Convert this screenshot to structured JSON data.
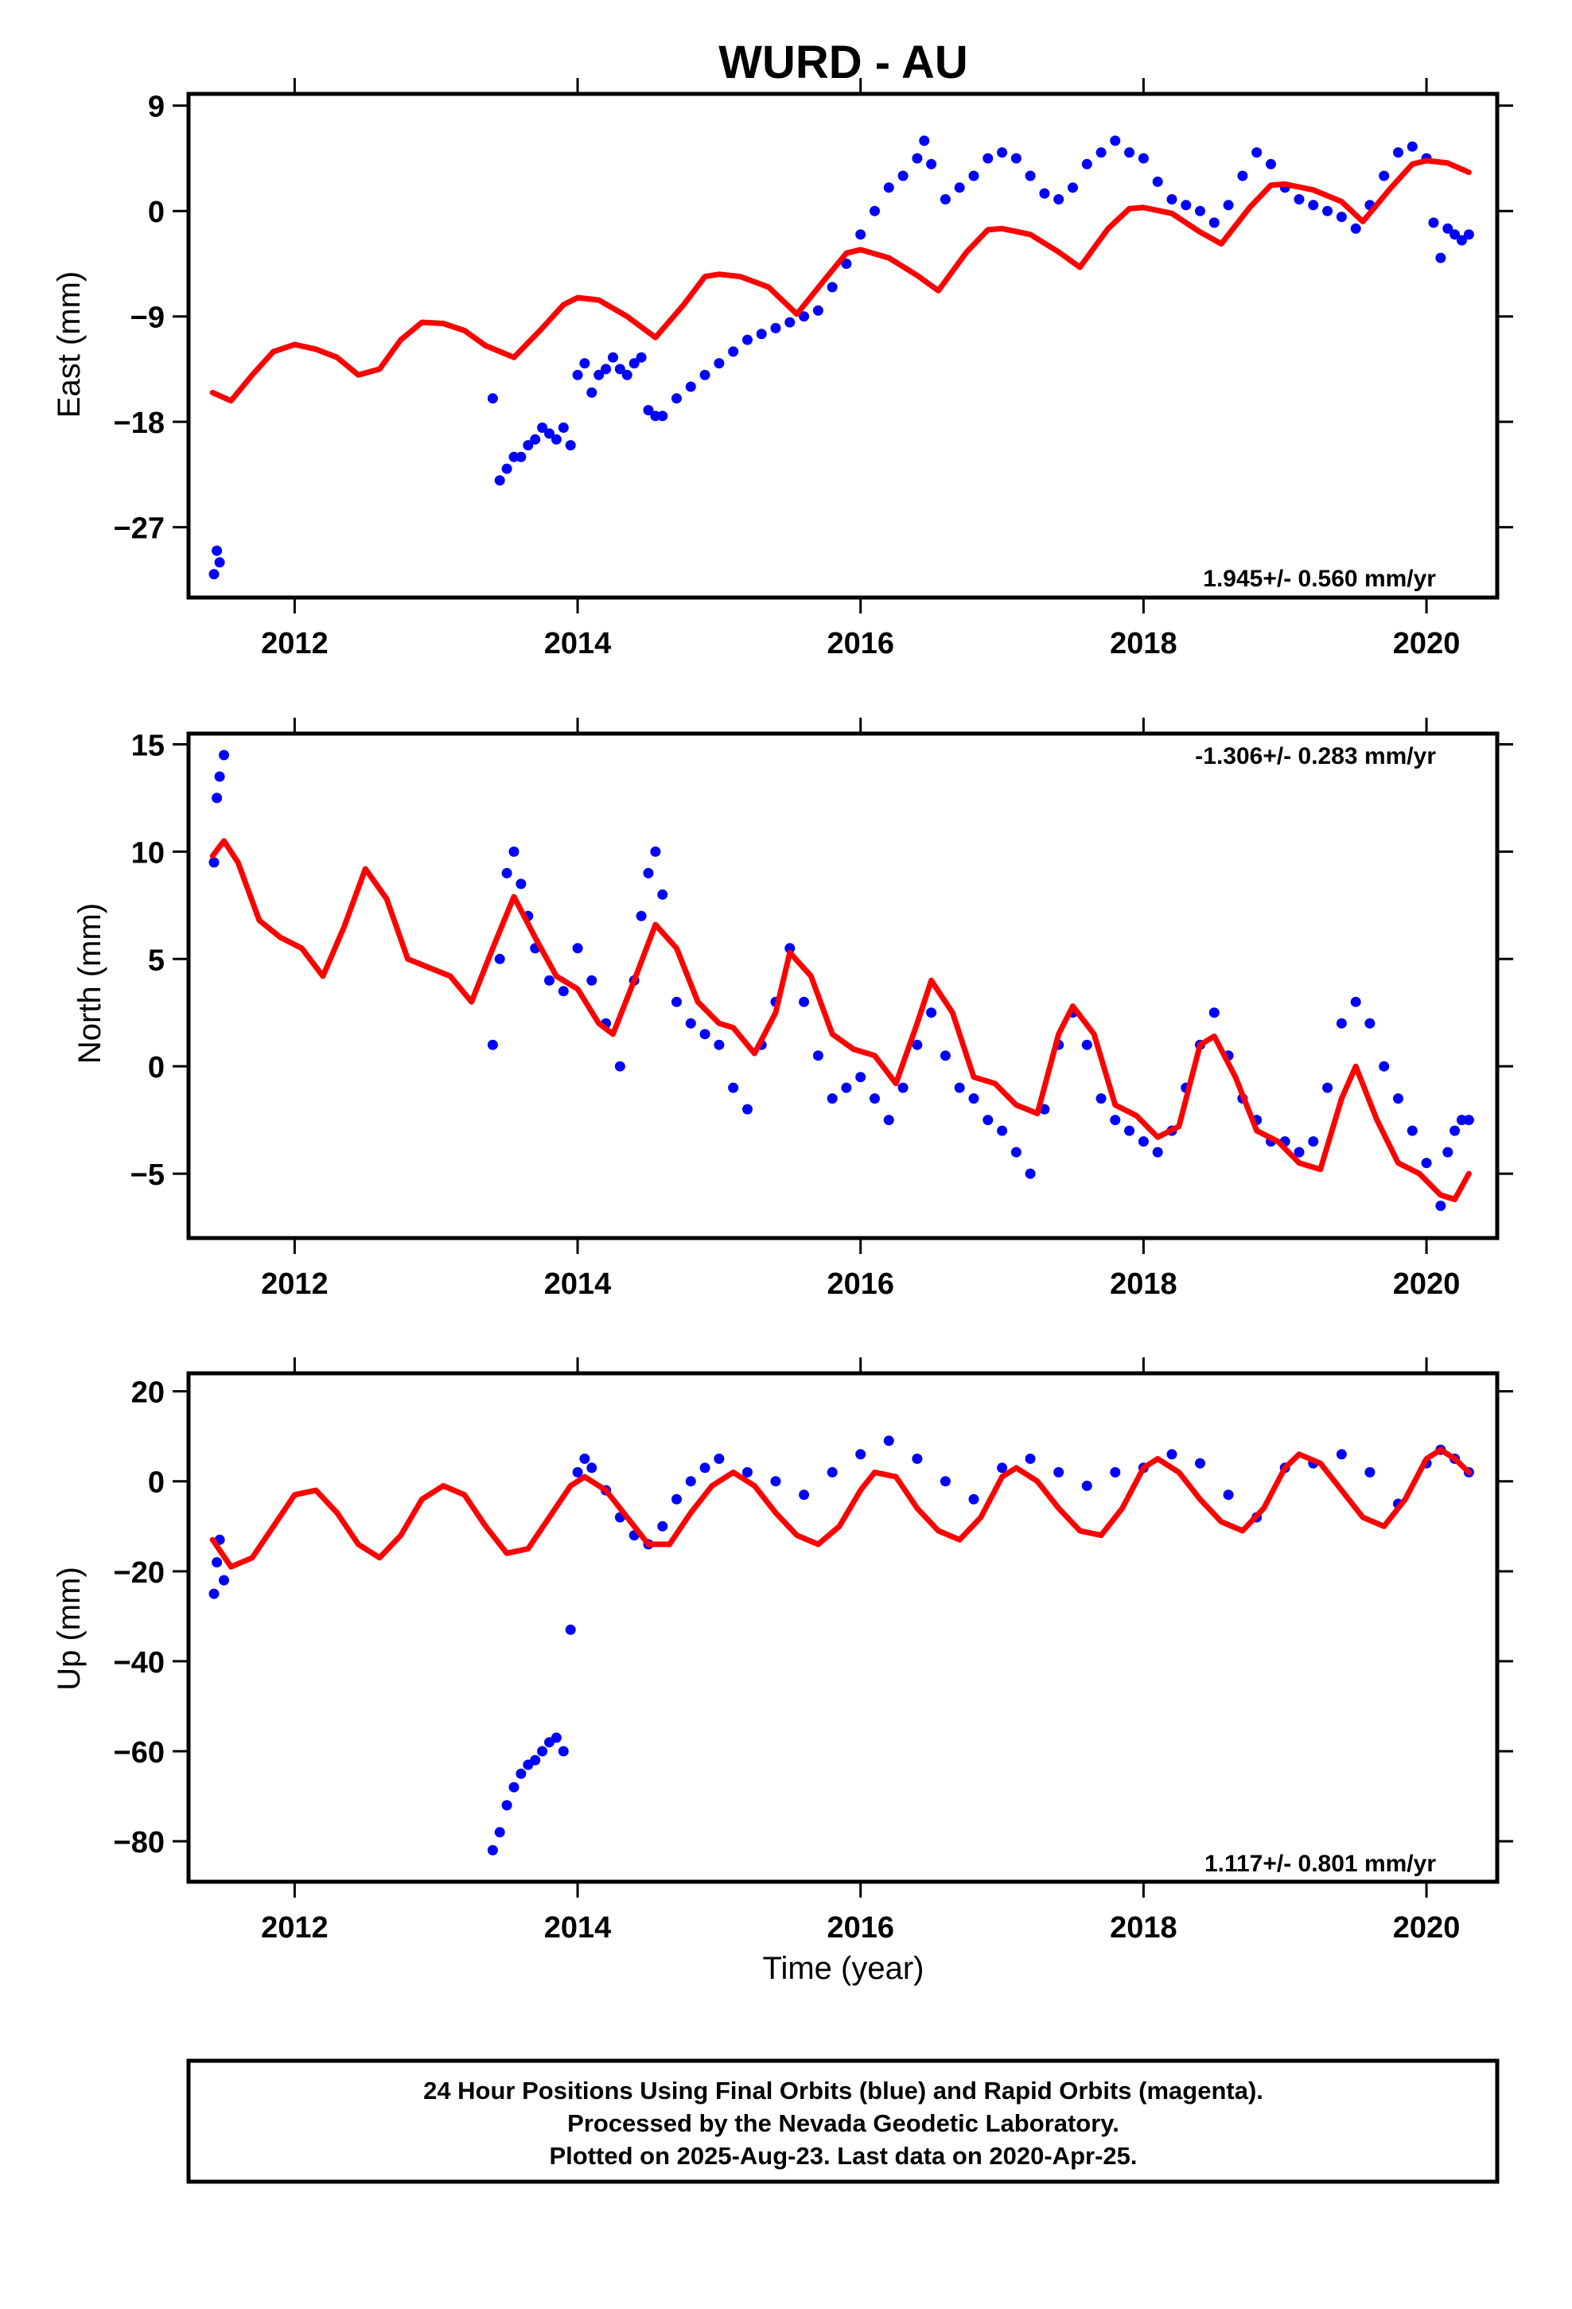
{
  "title": "WURD - AU",
  "xlabel": "Time (year)",
  "x_tick_labels": [
    "2012",
    "2014",
    "2016",
    "2018",
    "2020"
  ],
  "footer": {
    "line1": "24 Hour Positions Using Final Orbits (blue) and Rapid Orbits (magenta).",
    "line2": "Processed by the Nevada Geodetic Laboratory.",
    "line3": "Plotted on 2025-Aug-23. Last data on 2020-Apr-25."
  },
  "colors": {
    "points": "#0000ff",
    "model": "#ff0000",
    "axis": "#000000"
  },
  "chart_data": [
    {
      "type": "scatter",
      "panel": "east",
      "ylabel": "East (mm)",
      "rate_label": "1.945+/- 0.560 mm/yr",
      "rate_position": "bottom-right",
      "xlim": [
        2011.25,
        2020.5
      ],
      "ylim": [
        -33,
        10
      ],
      "yticks": [
        -27,
        -18,
        -9,
        0,
        9
      ],
      "ytick_labels": [
        "−27",
        "−18",
        "−9",
        "0",
        "9"
      ],
      "grid": false,
      "series": [
        {
          "style": "points",
          "color": "#0000ff",
          "x": [
            2011.43,
            2011.45,
            2011.47,
            2013.4,
            2013.45,
            2013.5,
            2013.55,
            2013.6,
            2013.65,
            2013.7,
            2013.75,
            2013.8,
            2013.85,
            2013.9,
            2013.95,
            2014.0,
            2014.05,
            2014.1,
            2014.15,
            2014.2,
            2014.25,
            2014.3,
            2014.35,
            2014.4,
            2014.45,
            2014.5,
            2014.55,
            2014.6,
            2014.7,
            2014.8,
            2014.9,
            2015.0,
            2015.1,
            2015.2,
            2015.3,
            2015.4,
            2015.5,
            2015.6,
            2015.7,
            2015.8,
            2015.9,
            2016.0,
            2016.1,
            2016.2,
            2016.3,
            2016.4,
            2016.45,
            2016.5,
            2016.6,
            2016.7,
            2016.8,
            2016.9,
            2017.0,
            2017.1,
            2017.2,
            2017.3,
            2017.4,
            2017.5,
            2017.6,
            2017.7,
            2017.8,
            2017.9,
            2018.0,
            2018.1,
            2018.2,
            2018.3,
            2018.4,
            2018.5,
            2018.6,
            2018.7,
            2018.8,
            2018.9,
            2019.0,
            2019.1,
            2019.2,
            2019.3,
            2019.4,
            2019.5,
            2019.6,
            2019.7,
            2019.8,
            2019.9,
            2020.0,
            2020.05,
            2020.1,
            2020.15,
            2020.2,
            2020.25,
            2020.3
          ],
          "y": [
            -31,
            -29,
            -30,
            -16,
            -23,
            -22,
            -21,
            -21,
            -20,
            -19.5,
            -18.5,
            -19,
            -19.5,
            -18.5,
            -20,
            -14,
            -13,
            -15.5,
            -14,
            -13.5,
            -12.5,
            -13.5,
            -14,
            -13,
            -12.5,
            -17,
            -17.5,
            -17.5,
            -16,
            -15,
            -14,
            -13,
            -12,
            -11,
            -10.5,
            -10,
            -9.5,
            -9,
            -8.5,
            -6.5,
            -4.5,
            -2,
            0,
            2,
            3,
            4.5,
            6,
            4,
            1,
            2,
            3,
            4.5,
            5,
            4.5,
            3,
            1.5,
            1,
            2,
            4,
            5,
            6,
            5,
            4.5,
            2.5,
            1,
            0.5,
            0,
            -1,
            0.5,
            3,
            5,
            4,
            2,
            1,
            0.5,
            0,
            -0.5,
            -1.5,
            0.5,
            3,
            5,
            5.5,
            4.5,
            -1,
            -4,
            -1.5,
            -2,
            -2.5,
            -2
          ]
        },
        {
          "style": "line",
          "color": "#ff0000",
          "x": [
            2011.42,
            2011.55,
            2011.7,
            2011.85,
            2012.0,
            2012.15,
            2012.3,
            2012.45,
            2012.6,
            2012.75,
            2012.9,
            2013.05,
            2013.2,
            2013.35,
            2013.55,
            2013.75,
            2013.9,
            2014.0,
            2014.15,
            2014.35,
            2014.55,
            2014.75,
            2014.9,
            2015.0,
            2015.15,
            2015.35,
            2015.55,
            2015.75,
            2015.9,
            2016.0,
            2016.2,
            2016.4,
            2016.55,
            2016.75,
            2016.9,
            2017.0,
            2017.2,
            2017.4,
            2017.55,
            2017.75,
            2017.9,
            2018.0,
            2018.2,
            2018.4,
            2018.55,
            2018.75,
            2018.9,
            2019.0,
            2019.2,
            2019.4,
            2019.55,
            2019.75,
            2019.9,
            2020.0,
            2020.15,
            2020.3
          ],
          "y": [
            -15.5,
            -16.2,
            -14,
            -12,
            -11.4,
            -11.8,
            -12.5,
            -14,
            -13.5,
            -11,
            -9.5,
            -9.6,
            -10.2,
            -11.5,
            -12.5,
            -10,
            -8,
            -7.4,
            -7.6,
            -9,
            -10.8,
            -8,
            -5.6,
            -5.4,
            -5.6,
            -6.5,
            -8.8,
            -5.8,
            -3.6,
            -3.3,
            -4,
            -5.5,
            -6.8,
            -3.5,
            -1.6,
            -1.5,
            -2,
            -3.5,
            -4.8,
            -1.5,
            0.2,
            0.3,
            -0.2,
            -1.8,
            -2.8,
            0.3,
            2.2,
            2.3,
            1.8,
            0.8,
            -0.9,
            2,
            4,
            4.3,
            4.1,
            3.3
          ]
        }
      ]
    },
    {
      "type": "scatter",
      "panel": "north",
      "ylabel": "North (mm)",
      "rate_label": "-1.306+/- 0.283 mm/yr",
      "rate_position": "top-right",
      "xlim": [
        2011.25,
        2020.5
      ],
      "ylim": [
        -8,
        15.5
      ],
      "yticks": [
        -5,
        0,
        5,
        10,
        15
      ],
      "ytick_labels": [
        "−5",
        "0",
        "5",
        "10",
        "15"
      ],
      "grid": false,
      "series": [
        {
          "style": "points",
          "color": "#0000ff",
          "x": [
            2011.43,
            2011.45,
            2011.47,
            2011.5,
            2013.4,
            2013.45,
            2013.5,
            2013.55,
            2013.6,
            2013.65,
            2013.7,
            2013.8,
            2013.9,
            2014.0,
            2014.1,
            2014.2,
            2014.3,
            2014.4,
            2014.45,
            2014.5,
            2014.55,
            2014.6,
            2014.7,
            2014.8,
            2014.9,
            2015.0,
            2015.1,
            2015.2,
            2015.3,
            2015.4,
            2015.5,
            2015.6,
            2015.7,
            2015.8,
            2015.9,
            2016.0,
            2016.1,
            2016.2,
            2016.3,
            2016.4,
            2016.5,
            2016.6,
            2016.7,
            2016.8,
            2016.9,
            2017.0,
            2017.1,
            2017.2,
            2017.3,
            2017.4,
            2017.5,
            2017.6,
            2017.7,
            2017.8,
            2017.9,
            2018.0,
            2018.1,
            2018.2,
            2018.3,
            2018.4,
            2018.5,
            2018.6,
            2018.7,
            2018.8,
            2018.9,
            2019.0,
            2019.1,
            2019.2,
            2019.3,
            2019.4,
            2019.5,
            2019.6,
            2019.7,
            2019.8,
            2019.9,
            2020.0,
            2020.1,
            2020.15,
            2020.2,
            2020.25,
            2020.3
          ],
          "y": [
            9.5,
            12.5,
            13.5,
            14.5,
            1,
            5,
            9,
            10,
            8.5,
            7,
            5.5,
            4,
            3.5,
            5.5,
            4,
            2,
            0,
            4,
            7,
            9,
            10,
            8,
            3,
            2,
            1.5,
            1,
            -1,
            -2,
            1,
            3,
            5.5,
            3,
            0.5,
            -1.5,
            -1,
            -0.5,
            -1.5,
            -2.5,
            -1,
            1,
            2.5,
            0.5,
            -1,
            -1.5,
            -2.5,
            -3,
            -4,
            -5,
            -2,
            1,
            2.5,
            1,
            -1.5,
            -2.5,
            -3,
            -3.5,
            -4,
            -3,
            -1,
            1,
            2.5,
            0.5,
            -1.5,
            -2.5,
            -3.5,
            -3.5,
            -4,
            -3.5,
            -1,
            2,
            3,
            2,
            0,
            -1.5,
            -3,
            -4.5,
            -6.5,
            -4,
            -3,
            -2.5,
            -2.5
          ]
        },
        {
          "style": "line",
          "color": "#ff0000",
          "x": [
            2011.42,
            2011.5,
            2011.6,
            2011.75,
            2011.9,
            2012.05,
            2012.2,
            2012.35,
            2012.5,
            2012.65,
            2012.8,
            2012.95,
            2013.1,
            2013.25,
            2013.4,
            2013.55,
            2013.7,
            2013.85,
            2014.0,
            2014.15,
            2014.25,
            2014.4,
            2014.55,
            2014.7,
            2014.85,
            2015.0,
            2015.1,
            2015.25,
            2015.4,
            2015.5,
            2015.65,
            2015.8,
            2015.95,
            2016.1,
            2016.25,
            2016.4,
            2016.5,
            2016.65,
            2016.8,
            2016.95,
            2017.1,
            2017.25,
            2017.4,
            2017.5,
            2017.65,
            2017.8,
            2017.95,
            2018.1,
            2018.25,
            2018.4,
            2018.5,
            2018.65,
            2018.8,
            2018.95,
            2019.1,
            2019.25,
            2019.4,
            2019.5,
            2019.65,
            2019.8,
            2019.95,
            2020.1,
            2020.2,
            2020.3
          ],
          "y": [
            9.8,
            10.5,
            9.5,
            6.8,
            6,
            5.5,
            4.2,
            6.5,
            9.2,
            7.8,
            5,
            4.6,
            4.2,
            3,
            5.5,
            7.9,
            6,
            4.2,
            3.6,
            2,
            1.5,
            4,
            6.6,
            5.5,
            3,
            2,
            1.8,
            0.6,
            2.5,
            5.3,
            4.2,
            1.5,
            0.8,
            0.5,
            -0.8,
            2,
            4,
            2.5,
            -0.5,
            -0.8,
            -1.8,
            -2.2,
            1.5,
            2.8,
            1.5,
            -1.8,
            -2.3,
            -3.3,
            -2.8,
            1,
            1.4,
            -0.5,
            -3,
            -3.5,
            -4.5,
            -4.8,
            -1.5,
            0,
            -2.5,
            -4.5,
            -5,
            -6,
            -6.2,
            -5
          ]
        }
      ]
    },
    {
      "type": "scatter",
      "panel": "up",
      "ylabel": "Up (mm)",
      "rate_label": "1.117+/- 0.801 mm/yr",
      "rate_position": "bottom-right",
      "xlim": [
        2011.25,
        2020.5
      ],
      "ylim": [
        -89,
        24
      ],
      "yticks": [
        -80,
        -60,
        -40,
        -20,
        0,
        20
      ],
      "ytick_labels": [
        "−80",
        "−60",
        "−40",
        "−20",
        "0",
        "20"
      ],
      "grid": false,
      "series": [
        {
          "style": "points",
          "color": "#0000ff",
          "x": [
            2011.43,
            2011.45,
            2011.47,
            2011.5,
            2013.4,
            2013.45,
            2013.5,
            2013.55,
            2013.6,
            2013.65,
            2013.7,
            2013.75,
            2013.8,
            2013.85,
            2013.9,
            2013.95,
            2014.0,
            2014.05,
            2014.1,
            2014.2,
            2014.3,
            2014.4,
            2014.5,
            2014.6,
            2014.7,
            2014.8,
            2014.9,
            2015.0,
            2015.2,
            2015.4,
            2015.6,
            2015.8,
            2016.0,
            2016.2,
            2016.4,
            2016.6,
            2016.8,
            2017.0,
            2017.2,
            2017.4,
            2017.6,
            2017.8,
            2018.0,
            2018.2,
            2018.4,
            2018.6,
            2018.8,
            2019.0,
            2019.2,
            2019.4,
            2019.6,
            2019.8,
            2020.0,
            2020.1,
            2020.2,
            2020.3
          ],
          "y": [
            -25,
            -18,
            -13,
            -22,
            -82,
            -78,
            -72,
            -68,
            -65,
            -63,
            -62,
            -60,
            -58,
            -57,
            -60,
            -33,
            2,
            5,
            3,
            -2,
            -8,
            -12,
            -14,
            -10,
            -4,
            0,
            3,
            5,
            2,
            0,
            -3,
            2,
            6,
            9,
            5,
            0,
            -4,
            3,
            5,
            2,
            -1,
            2,
            3,
            6,
            4,
            -3,
            -8,
            3,
            4,
            6,
            2,
            -5,
            4,
            7,
            5,
            2
          ]
        },
        {
          "style": "line",
          "color": "#ff0000",
          "x": [
            2011.42,
            2011.55,
            2011.7,
            2011.85,
            2012.0,
            2012.15,
            2012.3,
            2012.45,
            2012.6,
            2012.75,
            2012.9,
            2013.05,
            2013.2,
            2013.35,
            2013.5,
            2013.65,
            2013.8,
            2013.95,
            2014.05,
            2014.2,
            2014.35,
            2014.5,
            2014.65,
            2014.8,
            2014.95,
            2015.1,
            2015.25,
            2015.4,
            2015.55,
            2015.7,
            2015.85,
            2016.0,
            2016.1,
            2016.25,
            2016.4,
            2016.55,
            2016.7,
            2016.85,
            2017.0,
            2017.1,
            2017.25,
            2017.4,
            2017.55,
            2017.7,
            2017.85,
            2018.0,
            2018.1,
            2018.25,
            2018.4,
            2018.55,
            2018.7,
            2018.85,
            2019.0,
            2019.1,
            2019.25,
            2019.4,
            2019.55,
            2019.7,
            2019.85,
            2020.0,
            2020.1,
            2020.2,
            2020.3
          ],
          "y": [
            -13,
            -19,
            -17,
            -10,
            -3,
            -2,
            -7,
            -14,
            -17,
            -12,
            -4,
            -1,
            -3,
            -10,
            -16,
            -15,
            -8,
            -1,
            1,
            -2,
            -8,
            -14,
            -14,
            -7,
            -1,
            2,
            -1,
            -7,
            -12,
            -14,
            -10,
            -2,
            2,
            1,
            -6,
            -11,
            -13,
            -8,
            1,
            3,
            0,
            -6,
            -11,
            -12,
            -6,
            3,
            5,
            2,
            -4,
            -9,
            -11,
            -6,
            3,
            6,
            4,
            -2,
            -8,
            -10,
            -4,
            5,
            7,
            5,
            2
          ]
        }
      ]
    }
  ]
}
